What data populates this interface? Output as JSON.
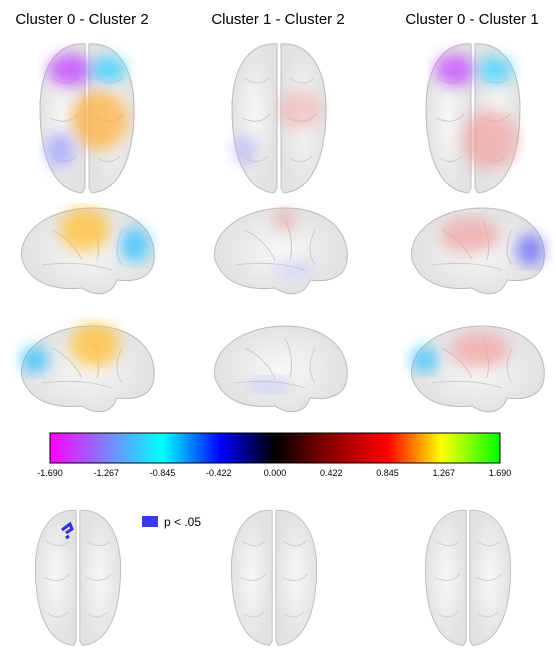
{
  "columns": [
    "Cluster 0 - Cluster 2",
    "Cluster 1 - Cluster 2",
    "Cluster 0 - Cluster 1"
  ],
  "colorbar": {
    "ticks": [
      "-1.690",
      "-1.267",
      "-0.845",
      "-0.422",
      "0.000",
      "0.422",
      "0.845",
      "1.267",
      "1.690"
    ]
  },
  "legend": {
    "label": "p < .05"
  }
}
